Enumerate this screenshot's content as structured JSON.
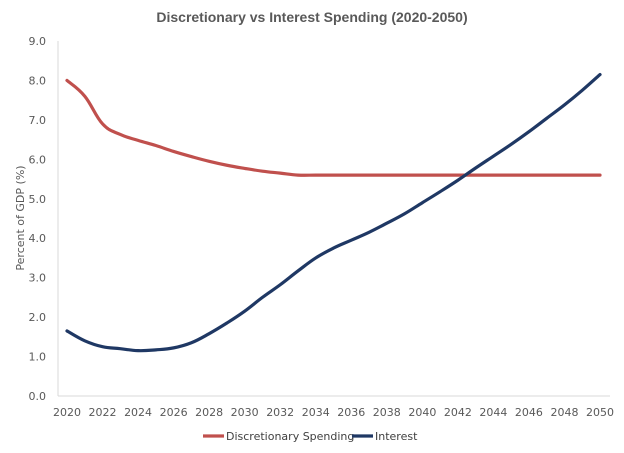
{
  "chart_data": {
    "type": "line",
    "title": "Discretionary vs Interest Spending (2020-2050)",
    "xlabel": "",
    "ylabel": "Percent of GDP (%)",
    "ylim": [
      0,
      9
    ],
    "yticks": [
      "0.0",
      "1.0",
      "2.0",
      "3.0",
      "4.0",
      "5.0",
      "6.0",
      "7.0",
      "8.0",
      "9.0"
    ],
    "xlim": [
      2020,
      2050
    ],
    "xticks": [
      "2020",
      "2022",
      "2024",
      "2026",
      "2028",
      "2030",
      "2032",
      "2034",
      "2036",
      "2038",
      "2040",
      "2042",
      "2044",
      "2046",
      "2048",
      "2050"
    ],
    "grid": false,
    "legend_position": "bottom",
    "x": [
      2020,
      2021,
      2022,
      2023,
      2024,
      2025,
      2026,
      2027,
      2028,
      2029,
      2030,
      2031,
      2032,
      2033,
      2034,
      2035,
      2036,
      2037,
      2038,
      2039,
      2040,
      2041,
      2042,
      2043,
      2044,
      2045,
      2046,
      2047,
      2048,
      2049,
      2050
    ],
    "series": [
      {
        "name": "Discretionary Spending",
        "color": "#c0504d",
        "values": [
          8.0,
          7.6,
          6.9,
          6.63,
          6.48,
          6.35,
          6.2,
          6.07,
          5.95,
          5.85,
          5.77,
          5.7,
          5.65,
          5.6,
          5.6,
          5.6,
          5.6,
          5.6,
          5.6,
          5.6,
          5.6,
          5.6,
          5.6,
          5.6,
          5.6,
          5.6,
          5.6,
          5.6,
          5.6,
          5.6,
          5.6
        ]
      },
      {
        "name": "Interest",
        "color": "#1f3864",
        "values": [
          1.65,
          1.4,
          1.25,
          1.2,
          1.15,
          1.17,
          1.22,
          1.35,
          1.58,
          1.85,
          2.15,
          2.5,
          2.82,
          3.17,
          3.5,
          3.75,
          3.95,
          4.15,
          4.38,
          4.62,
          4.9,
          5.18,
          5.47,
          5.78,
          6.08,
          6.38,
          6.7,
          7.04,
          7.38,
          7.75,
          8.15
        ]
      }
    ],
    "colors": {
      "axis": "#d9d9d9",
      "text": "#595959"
    }
  }
}
